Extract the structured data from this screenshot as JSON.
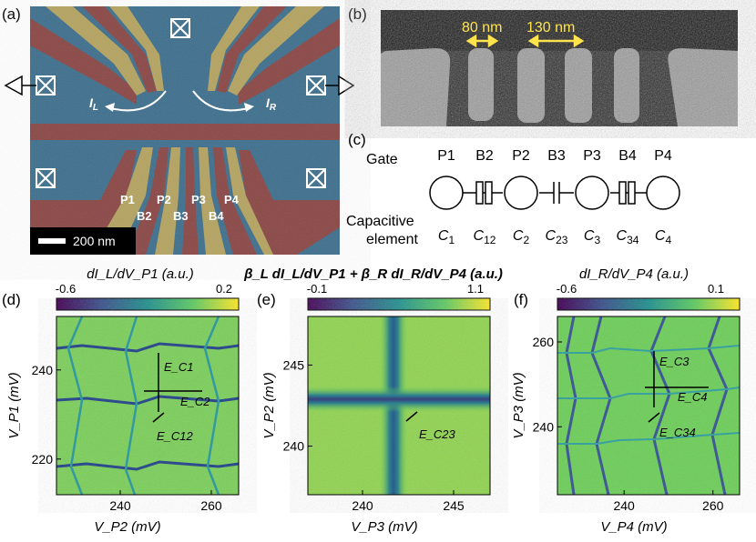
{
  "panels": {
    "a": {
      "label": "(a)",
      "i_left": "I",
      "i_left_sub": "L",
      "i_right": "I",
      "i_right_sub": "R",
      "gates_top": [
        "P1",
        "P2",
        "P3",
        "P4"
      ],
      "gates_bottom": [
        "B2",
        "B3",
        "B4"
      ],
      "scale_bar": "200 nm"
    },
    "b": {
      "label": "(b)",
      "dim1": "80 nm",
      "dim2": "130 nm"
    },
    "c": {
      "label": "(c)",
      "gate_header": "Gate",
      "gates": [
        "P1",
        "B2",
        "P2",
        "B3",
        "P3",
        "B4",
        "P4"
      ],
      "cap_header_1": "Capacitive",
      "cap_header_2": "element",
      "caps": [
        {
          "b": "C",
          "s": "1"
        },
        {
          "b": "C",
          "s": "12"
        },
        {
          "b": "C",
          "s": "2"
        },
        {
          "b": "C",
          "s": "23"
        },
        {
          "b": "C",
          "s": "3"
        },
        {
          "b": "C",
          "s": "34"
        },
        {
          "b": "C",
          "s": "4"
        }
      ]
    },
    "d": {
      "label": "(d)",
      "cb_title": "dI_L/dV_P1 (a.u.)",
      "cb_min": "-0.6",
      "cb_max": "0.2",
      "x_ticks": [
        "240",
        "260"
      ],
      "y_ticks": [
        "220",
        "240"
      ],
      "x_label": "V_P2 (mV)",
      "y_label": "V_P1 (mV)",
      "ann": [
        "E_C1",
        "E_C2",
        "E_C12"
      ]
    },
    "e": {
      "label": "(e)",
      "cb_title": "β_L dI_L/dV_P1 + β_R dI_R/dV_P4 (a.u.)",
      "cb_min": "-0.1",
      "cb_max": "1.1",
      "x_ticks": [
        "240",
        "245"
      ],
      "y_ticks": [
        "240",
        "245"
      ],
      "x_label": "V_P3 (mV)",
      "y_label": "V_P2 (mV)",
      "ann": [
        "E_C23"
      ]
    },
    "f": {
      "label": "(f)",
      "cb_title": "dI_R/dV_P4 (a.u.)",
      "cb_min": "-0.6",
      "cb_max": "0.1",
      "x_ticks": [
        "240",
        "260"
      ],
      "y_ticks": [
        "240",
        "260"
      ],
      "x_label": "V_P4 (mV)",
      "y_label": "V_P3 (mV)",
      "ann": [
        "E_C3",
        "E_C4",
        "E_C34"
      ]
    }
  },
  "chart_data": [
    {
      "type": "heatmap",
      "title": "dI_L/dV_P1 (a.u.)",
      "xlabel": "V_P2 (mV)",
      "ylabel": "V_P1 (mV)",
      "xlim": [
        226,
        266
      ],
      "ylim": [
        212,
        252
      ],
      "clim": [
        -0.6,
        0.2
      ],
      "xticks": [
        240,
        260
      ],
      "yticks": [
        220,
        240
      ],
      "annotations": [
        "E_C1",
        "E_C2",
        "E_C12"
      ]
    },
    {
      "type": "heatmap",
      "title": "β_L dI_L/dV_P1 + β_R dI_R/dV_P4 (a.u.)",
      "xlabel": "V_P3 (mV)",
      "ylabel": "V_P2 (mV)",
      "xlim": [
        237,
        247
      ],
      "ylim": [
        237,
        248
      ],
      "clim": [
        -0.1,
        1.1
      ],
      "xticks": [
        240,
        245
      ],
      "yticks": [
        240,
        245
      ],
      "annotations": [
        "E_C23"
      ]
    },
    {
      "type": "heatmap",
      "title": "dI_R/dV_P4 (a.u.)",
      "xlabel": "V_P4 (mV)",
      "ylabel": "V_P3 (mV)",
      "xlim": [
        225,
        266
      ],
      "ylim": [
        224,
        266
      ],
      "clim": [
        -0.6,
        0.1
      ],
      "xticks": [
        240,
        260
      ],
      "yticks": [
        240,
        260
      ],
      "annotations": [
        "E_C3",
        "E_C4",
        "E_C34"
      ]
    }
  ]
}
